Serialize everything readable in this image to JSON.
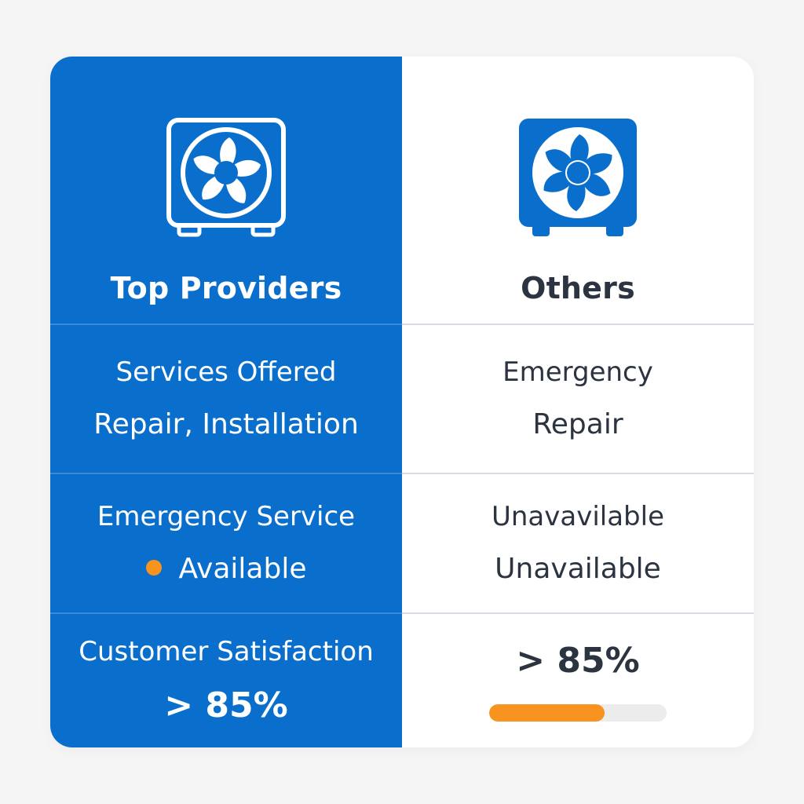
{
  "colors": {
    "primary_blue": "#0a6fcc",
    "accent_orange": "#f7931e",
    "dark_text": "#2b3440",
    "divider": "#d8dde5",
    "track": "#ececec"
  },
  "left": {
    "icon": "hvac-fan-unit-outline-icon",
    "title": "Top Providers",
    "services": {
      "label": "Services Offered",
      "value": "Repair, Installation"
    },
    "emergency": {
      "label": "Emergency Service",
      "value": "Available"
    },
    "satisfaction": {
      "label": "Customer Satisfaction",
      "value": "> 85%"
    }
  },
  "right": {
    "icon": "hvac-fan-unit-filled-icon",
    "title": "Others",
    "services": {
      "label": "Emergency",
      "value": "Repair"
    },
    "emergency": {
      "label": "Unavavilable",
      "value": "Unavailable"
    },
    "satisfaction": {
      "value": "> 85%",
      "progress_fraction": 0.65
    }
  }
}
